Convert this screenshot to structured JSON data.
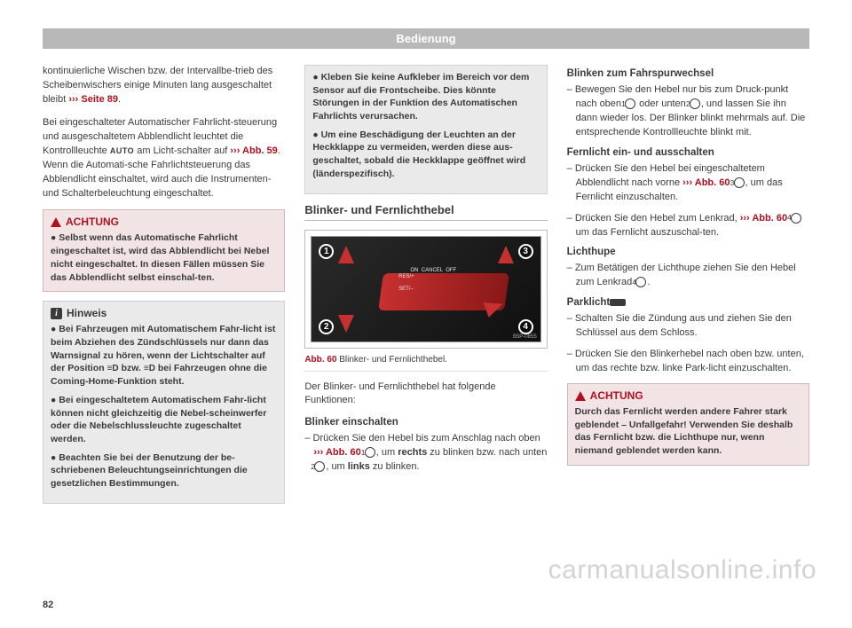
{
  "header": "Bedienung",
  "pageNumber": "82",
  "watermark": "carmanualsonline.info",
  "col1": {
    "p1_a": "kontinuierliche Wischen bzw. der Intervallbe-trieb des Scheibenwischers einige Minuten lang ausgeschaltet bleibt ",
    "p1_ref": "››› Seite 89",
    "p1_b": ".",
    "p2_a": "Bei eingeschalteter Automatischer Fahrlicht-steuerung und ausgeschaltetem Abblendlicht leuchtet die Kontrollleuchte ",
    "p2_auto": "AUTO",
    "p2_b": " am Licht-schalter auf ",
    "p2_ref": "››› Abb. 59",
    "p2_c": ". Wenn die Automati-sche Fahrlichtsteuerung das Abblendlicht einschaltet, wird auch die Instrumenten- und Schalterbeleuchtung eingeschaltet.",
    "achtung_head": "ACHTUNG",
    "achtung_body": "● Selbst wenn das Automatische Fahrlicht eingeschaltet ist, wird das Abblendlicht bei Nebel nicht eingeschaltet. In diesen Fällen müssen Sie das Abblendlicht selbst einschal-ten.",
    "hinweis_head": "Hinweis",
    "hinweis_b1_a": "● Bei Fahrzeugen mit Automatischem Fahr-licht ist beim Abziehen des Zündschlüssels nur dann das Warnsignal zu hören, wenn der Lichtschalter auf der Position ",
    "hinweis_b1_b": " bzw. ",
    "hinweis_b1_c": " bei Fahrzeugen ohne die Coming-Home-Funktion steht.",
    "hinweis_b2": "● Bei eingeschaltetem Automatischem Fahr-licht können nicht gleichzeitig die Nebel-scheinwerfer oder die Nebelschlussleuchte zugeschaltet werden.",
    "hinweis_b3": "● Beachten Sie bei der Benutzung der be-schriebenen Beleuchtungseinrichtungen die gesetzlichen Bestimmungen."
  },
  "col2": {
    "cont_b1": "● Kleben Sie keine Aufkleber im Bereich vor dem Sensor auf die Frontscheibe. Dies könnte Störungen in der Funktion des Automatischen Fahrlichts verursachen.",
    "cont_b2": "● Um eine Beschädigung der Leuchten an der Heckklappe zu vermeiden, werden diese aus-geschaltet, sobald die Heckklappe geöffnet wird (länderspezifisch).",
    "section_title": "Blinker- und Fernlichthebel",
    "fig_credit": "B5P-0855",
    "fig_abb": "Abb. 60",
    "fig_caption": "  Blinker- und Fernlichthebel.",
    "p_after_fig": "Der Blinker- und Fernlichthebel hat folgende Funktionen:",
    "sub_blinker": "Blinker einschalten",
    "blinker_a": "– Drücken Sie den Hebel bis zum Anschlag nach oben ",
    "blinker_ref": "››› Abb. 60",
    "blinker_b": ", um ",
    "blinker_rechts": "rechts",
    "blinker_c": " zu blinken bzw. nach unten ",
    "blinker_d": ", um ",
    "blinker_links": "links",
    "blinker_e": " zu blinken.",
    "lever_labels": "        ON  CANCEL  OFF\nRES/+\n\nSET/–"
  },
  "col3": {
    "sub_fahrspur": "Blinken zum Fahrspurwechsel",
    "fahrspur_a": "– Bewegen Sie den Hebel nur bis zum Druck-punkt nach oben ",
    "fahrspur_b": " oder unten ",
    "fahrspur_c": ", und lassen Sie ihn dann wieder los. Der Blinker blinkt mehrmals auf. Die entsprechende Kontrollleuchte blinkt mit.",
    "sub_fern": "Fernlicht ein- und ausschalten",
    "fern1_a": "– Drücken Sie den Hebel bei eingeschaltetem Abblendlicht nach vorne ",
    "fern1_ref": "››› Abb. 60",
    "fern1_b": ", um das Fernlicht einzuschalten.",
    "fern2_a": "– Drücken Sie den Hebel zum Lenkrad, ",
    "fern2_ref": "››› Abb. 60",
    "fern2_b": " um das Fernlicht auszuschal-ten.",
    "sub_lichthupe": "Lichthupe",
    "licht_a": "– Zum Betätigen der Lichthupe ziehen Sie den Hebel zum Lenkrad ",
    "licht_b": ".",
    "sub_parklicht": "Parklicht",
    "park1": "– Schalten Sie die Zündung aus und ziehen Sie den Schlüssel aus dem Schloss.",
    "park2": "– Drücken Sie den Blinkerhebel nach oben bzw. unten, um das rechte bzw. linke Park-licht einzuschalten.",
    "achtung_head": "ACHTUNG",
    "achtung_body": "Durch das Fernlicht werden andere Fahrer stark geblendet – Unfallgefahr! Verwenden Sie deshalb das Fernlicht bzw. die Lichthupe nur, wenn niemand geblendet werden kann."
  },
  "markers": {
    "m1": "1",
    "m2": "2",
    "m3": "3",
    "m4": "4"
  },
  "iconlight": "≡D"
}
